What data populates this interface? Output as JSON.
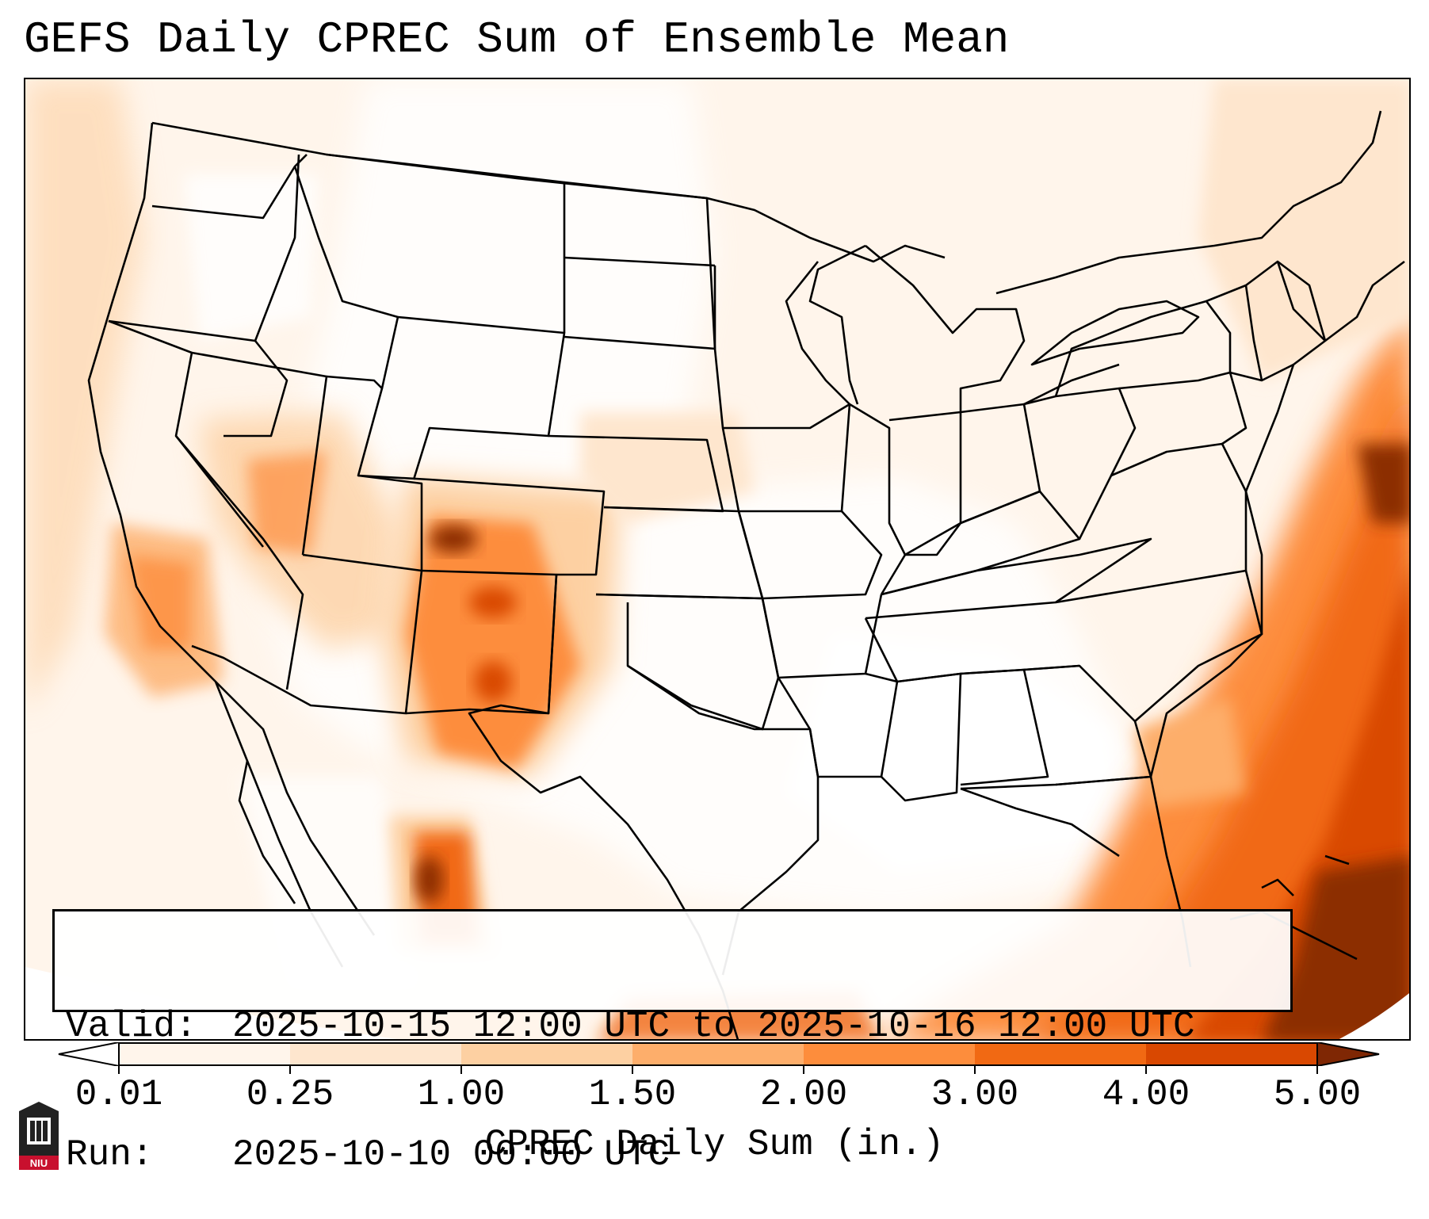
{
  "title": "GEFS Daily CPREC Sum of Ensemble Mean",
  "info": {
    "valid_label": "Valid:",
    "valid_value": "2025-10-15 12:00 UTC to 2025-10-16 12:00 UTC",
    "run_label": "Run:",
    "run_value": "2025-10-10 00:00 UTC"
  },
  "colorbar": {
    "label": "CPREC Daily Sum (in.)",
    "ticks": [
      "0.01",
      "0.25",
      "1.00",
      "1.50",
      "2.00",
      "3.00",
      "4.00",
      "5.00"
    ],
    "colors": [
      "#fff5eb",
      "#fee6ce",
      "#fdd0a2",
      "#fdae6b",
      "#fd8d3c",
      "#f16913",
      "#d94801",
      "#8c2d04"
    ],
    "under_color": "#ffffff",
    "over_color": "#7f2704"
  },
  "logo": {
    "text": "NIU",
    "color": "#c8102e"
  },
  "map": {
    "region": "Contiguous United States",
    "features": [
      "state borders",
      "coastlines",
      "lakes"
    ]
  }
}
